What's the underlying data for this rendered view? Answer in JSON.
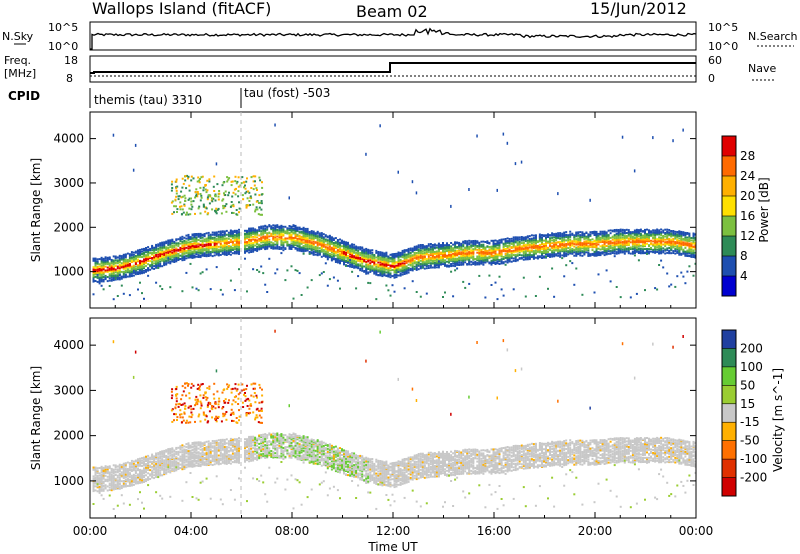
{
  "header": {
    "site": "Wallops Island (fitACF)",
    "beam": "Beam 02",
    "date": "15/Jun/2012"
  },
  "nsky_panel": {
    "left_label": "N.Sky",
    "right_label": "N.Search",
    "left_ticks": [
      "10^5",
      "10^0"
    ],
    "right_ticks": [
      "10^5",
      "10^0"
    ]
  },
  "freq_panel": {
    "left_label_1": "Freq.",
    "left_label_2": "[MHz]",
    "right_label": "Nave",
    "left_ticks": [
      "18",
      "8"
    ],
    "right_ticks": [
      "60",
      "0"
    ]
  },
  "cpid_panel": {
    "label": "CPID",
    "segments": [
      "themis (tau) 3310",
      "tau (fost) -503"
    ]
  },
  "chart_data": [
    {
      "type": "heatmap",
      "name": "power",
      "ylabel": "Slant Range [km]",
      "colorbar_label": "Power [dB]",
      "xlim": [
        0,
        24
      ],
      "ylim": [
        180,
        4600
      ],
      "yticks": [
        1000,
        2000,
        3000,
        4000
      ],
      "xticks": [
        0,
        4,
        8,
        12,
        16,
        20,
        24
      ],
      "xtick_labels": [
        "00:00",
        "04:00",
        "08:00",
        "12:00",
        "16:00",
        "20:00",
        "00:00"
      ],
      "colorbar_ticks": [
        "28",
        "24",
        "20",
        "16",
        "12",
        "8",
        "4"
      ],
      "colorbar_colors": [
        "#e00000",
        "#ff6a00",
        "#ffb000",
        "#ffe000",
        "#7cc040",
        "#2e8b57",
        "#1e4fb0",
        "#0000d0"
      ],
      "main_echo_range_km": {
        "hours": [
          0,
          1,
          2,
          3,
          4,
          5,
          6,
          7,
          8,
          9,
          10,
          11,
          12,
          13,
          14,
          15,
          16,
          17,
          18,
          19,
          20,
          21,
          22,
          23,
          24
        ],
        "range": [
          1050,
          1100,
          1250,
          1450,
          1600,
          1650,
          1700,
          1800,
          1800,
          1650,
          1450,
          1250,
          1150,
          1350,
          1400,
          1450,
          1450,
          1550,
          1600,
          1650,
          1650,
          1700,
          1700,
          1700,
          1600
        ]
      }
    },
    {
      "type": "heatmap",
      "name": "velocity",
      "xlabel": "Time UT",
      "ylabel": "Slant Range [km]",
      "colorbar_label": "Velocity [m s^-1]",
      "xlim": [
        0,
        24
      ],
      "ylim": [
        180,
        4600
      ],
      "yticks": [
        1000,
        2000,
        3000,
        4000
      ],
      "xticks": [
        0,
        4,
        8,
        12,
        16,
        20,
        24
      ],
      "xtick_labels": [
        "00:00",
        "04:00",
        "08:00",
        "12:00",
        "16:00",
        "20:00",
        "00:00"
      ],
      "colorbar_ticks": [
        "200",
        "100",
        "50",
        "15",
        "-15",
        "-50",
        "-100",
        "-200"
      ],
      "colorbar_colors": [
        "#2040a0",
        "#2e8b57",
        "#66cc33",
        "#9acd32",
        "#c8c8c8",
        "#ffb000",
        "#ff7000",
        "#e03000",
        "#d00000"
      ]
    }
  ]
}
